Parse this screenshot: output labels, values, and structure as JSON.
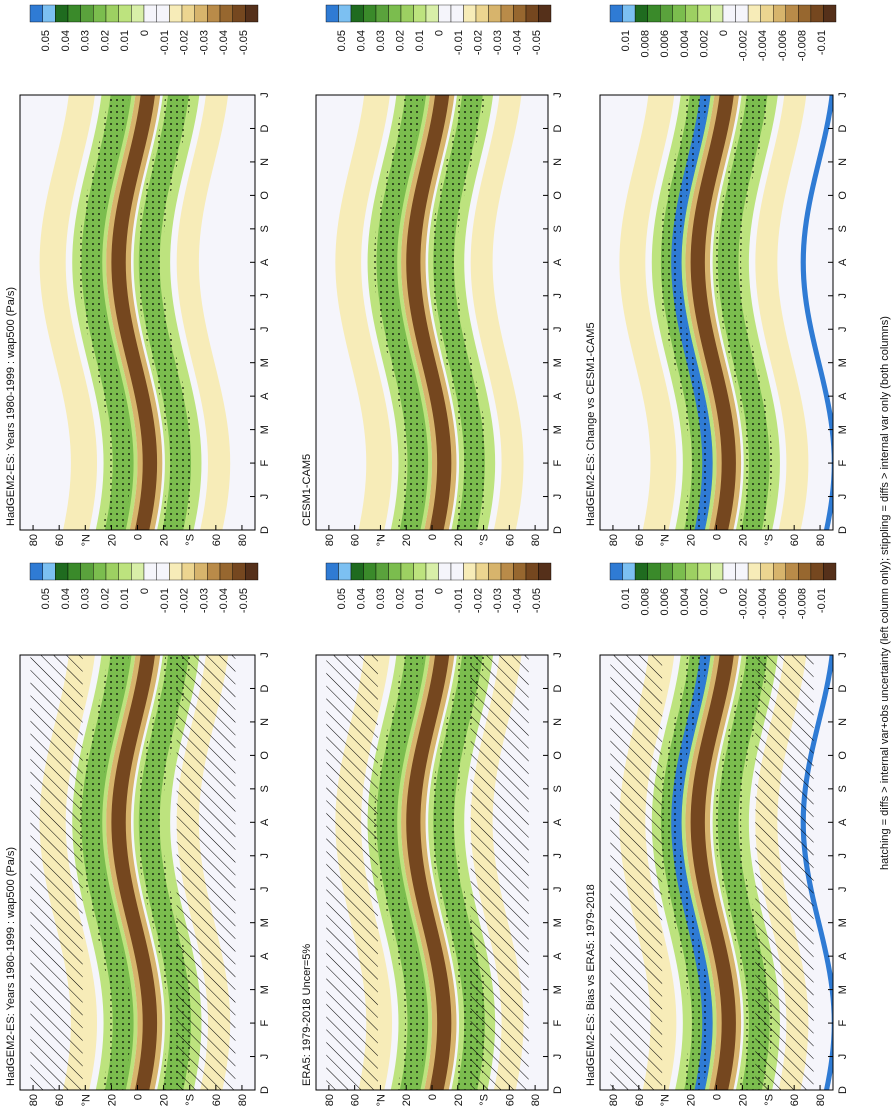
{
  "caption": "hatching = diffs > internal var+obs uncertainty (left column only); stippling = diffs > internal var only (both columns)",
  "months": [
    "D",
    "J",
    "F",
    "M",
    "A",
    "M",
    "J",
    "J",
    "A",
    "S",
    "O",
    "N",
    "D",
    "J"
  ],
  "latitudes": [
    "80",
    "60",
    "°N",
    "20",
    "0",
    "20",
    "°S",
    "60",
    "80"
  ],
  "colorbars": [
    {
      "colors": [
        "#2f7bd4",
        "#7cc0f2",
        "#1f6b1f",
        "#3a8a2a",
        "#5aa23c",
        "#7bbd4e",
        "#9dd062",
        "#bde37e",
        "#d8efa8",
        "#f5f5fb",
        "#f5f5fb",
        "#f7ecb8",
        "#ecd590",
        "#d7b46c",
        "#b98b49",
        "#97672f",
        "#75471f",
        "#55301a"
      ],
      "labels": [
        "0.05",
        "0.04",
        "0.03",
        "0.02",
        "0.01",
        "0",
        "-0.01",
        "-0.02",
        "-0.03",
        "-0.04",
        "-0.05"
      ]
    },
    {
      "colors": [
        "#2f7bd4",
        "#7cc0f2",
        "#1f6b1f",
        "#3a8a2a",
        "#5aa23c",
        "#7bbd4e",
        "#9dd062",
        "#bde37e",
        "#d8efa8",
        "#f5f5fb",
        "#f5f5fb",
        "#f7ecb8",
        "#ecd590",
        "#d7b46c",
        "#b98b49",
        "#97672f",
        "#75471f",
        "#55301a"
      ],
      "labels": [
        "0.01",
        "0.008",
        "0.006",
        "0.004",
        "0.002",
        "0",
        "-0.002",
        "-0.004",
        "-0.006",
        "-0.008",
        "-0.01"
      ]
    }
  ],
  "panels": [
    {
      "title": "HadGEM2-ES: Years 1980-1999 : wap500 (Pa/s)",
      "colorbar": 0,
      "hatching": true
    },
    {
      "title": "HadGEM2-ES: Years 1980-1999 : wap500 (Pa/s)",
      "colorbar": 0,
      "hatching": false
    },
    {
      "title": "ERA5: 1979-2018 Uncer=5%",
      "colorbar": 0,
      "hatching": true
    },
    {
      "title": "CESM1-CAM5",
      "colorbar": 0,
      "hatching": false
    },
    {
      "title": "HadGEM2-ES: Bias vs ERA5: 1979-2018",
      "colorbar": 1,
      "hatching": true
    },
    {
      "title": "HadGEM2-ES: Change vs CESM1-CAM5",
      "colorbar": 1,
      "hatching": false
    }
  ]
}
